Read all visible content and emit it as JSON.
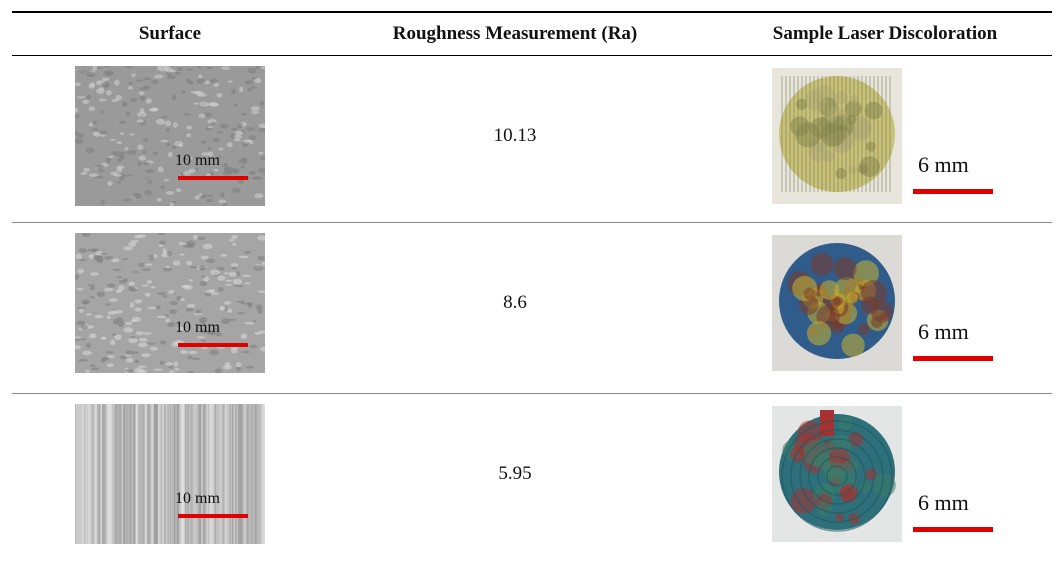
{
  "table": {
    "headers": [
      "Surface",
      "Roughness Measurement (Ra)",
      "Sample Laser Discoloration"
    ],
    "rows": [
      {
        "surface_scale": "10 mm",
        "roughness": 10.13,
        "discoloration_scale": "6 mm"
      },
      {
        "surface_scale": "10 mm",
        "roughness": 8.6,
        "discoloration_scale": "6 mm"
      },
      {
        "surface_scale": "10 mm",
        "roughness": 5.95,
        "discoloration_scale": "6 mm"
      }
    ]
  }
}
